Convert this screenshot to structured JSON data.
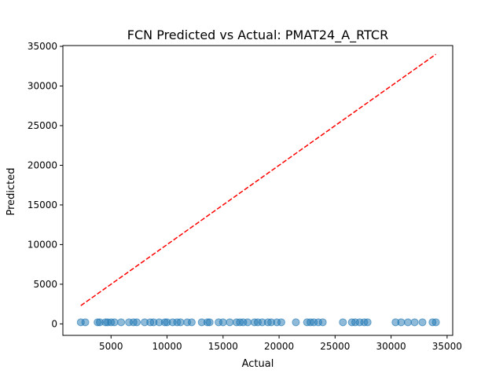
{
  "chart_data": {
    "type": "scatter",
    "title": "FCN Predicted vs Actual: PMAT24_A_RTCR",
    "xlabel": "Actual",
    "ylabel": "Predicted",
    "xlim": [
      700,
      35500
    ],
    "ylim": [
      -1450,
      35100
    ],
    "xticks": [
      5000,
      10000,
      15000,
      20000,
      25000,
      30000,
      35000
    ],
    "yticks": [
      0,
      5000,
      10000,
      15000,
      20000,
      25000,
      30000,
      35000
    ],
    "grid": false,
    "legend": "none",
    "colors": {
      "points": "#1f77b4",
      "identity_line": "#ff0000"
    },
    "identity_line": {
      "x": [
        2300,
        34000
      ],
      "y": [
        2300,
        34000
      ],
      "style": "dashed"
    },
    "series": [
      {
        "x": [
          2300,
          2700,
          3800,
          4000,
          4500,
          4700,
          5000,
          5300,
          5900,
          6600,
          7000,
          7300,
          8000,
          8500,
          8800,
          9300,
          9800,
          10000,
          10500,
          10900,
          11200,
          11800,
          12200,
          13100,
          13600,
          13800,
          14600,
          15000,
          15600,
          16200,
          16500,
          16800,
          17200,
          17800,
          18100,
          18500,
          19000,
          19300,
          19800,
          20200,
          21500,
          22500,
          22800,
          23100,
          23500,
          23900,
          25700,
          26500,
          26800,
          27200,
          27600,
          27900,
          30400,
          30900,
          31500,
          32100,
          32800,
          33700,
          34000
        ],
        "y": [
          200,
          200,
          200,
          200,
          200,
          200,
          200,
          200,
          200,
          200,
          200,
          200,
          200,
          200,
          200,
          200,
          200,
          200,
          200,
          200,
          200,
          200,
          200,
          200,
          200,
          200,
          200,
          200,
          200,
          200,
          200,
          200,
          200,
          200,
          200,
          200,
          200,
          200,
          200,
          200,
          200,
          200,
          200,
          200,
          200,
          200,
          200,
          200,
          200,
          200,
          200,
          200,
          200,
          200,
          200,
          200,
          200,
          200,
          200
        ]
      }
    ]
  }
}
